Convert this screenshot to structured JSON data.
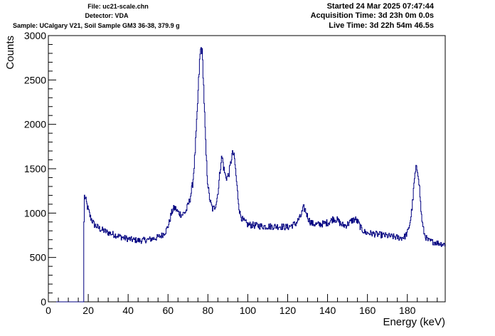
{
  "header": {
    "file": "File: uc21-scale.chn",
    "detector": "Detector: VDA",
    "sample": "Sample: UCalgary V21, Soil Sample GM3 36-38, 379.9 g",
    "started": "Started 24 Mar 2025 07:47:44",
    "acquisition": "Acquisition Time: 3d 23h 0m 0.0s",
    "live": "Live Time: 3d 22h 54m 46.5s"
  },
  "colors": {
    "series": "#000080",
    "axis": "#000000"
  },
  "chart_data": {
    "type": "line",
    "title": "",
    "xlabel": "Energy (keV)",
    "ylabel": "Counts",
    "xlim": [
      0,
      199
    ],
    "ylim": [
      0,
      3000
    ],
    "x_ticks": [
      0,
      20,
      40,
      60,
      80,
      100,
      120,
      140,
      160,
      180
    ],
    "y_ticks": [
      0,
      500,
      1000,
      1500,
      2000,
      2500,
      3000
    ],
    "grid": false,
    "legend": "none",
    "series": [
      {
        "x": [
          0,
          17.8,
          17.9,
          18.5,
          19.5,
          21,
          23,
          26,
          30,
          34,
          38,
          42,
          46,
          50,
          54,
          57,
          59,
          60.5,
          61.5,
          62.5,
          63.5,
          65,
          67,
          69,
          71,
          72.5,
          73.5,
          74.5,
          75.3,
          76,
          76.5,
          77,
          77.6,
          78.3,
          79,
          79.8,
          80.6,
          81.5,
          82.5,
          83.5,
          84.5,
          85.3,
          86,
          86.7,
          87.3,
          88,
          88.8,
          89.6,
          90.4,
          91.2,
          92,
          92.8,
          93.5,
          94.2,
          95,
          96,
          97.5,
          100,
          104,
          108,
          112,
          116,
          120,
          124,
          126.5,
          128,
          129,
          130,
          131,
          132.5,
          135,
          138,
          141,
          143,
          145,
          147,
          149,
          151,
          152.5,
          154,
          155.5,
          157,
          159,
          162,
          165,
          168,
          171,
          174,
          177,
          179,
          180.5,
          181.8,
          182.8,
          183.6,
          184.3,
          185,
          185.6,
          186.2,
          186.9,
          187.7,
          188.6,
          189.5,
          190.5,
          192,
          194,
          196,
          198,
          199
        ],
        "y": [
          0,
          0,
          1200,
          1170,
          1080,
          960,
          870,
          820,
          780,
          750,
          720,
          700,
          690,
          700,
          720,
          750,
          800,
          880,
          980,
          1040,
          1060,
          1010,
          980,
          1020,
          1150,
          1350,
          1650,
          2050,
          2450,
          2750,
          2860,
          2850,
          2600,
          2150,
          1700,
          1380,
          1200,
          1100,
          1040,
          1070,
          1150,
          1280,
          1450,
          1610,
          1620,
          1500,
          1420,
          1400,
          1430,
          1520,
          1650,
          1670,
          1580,
          1400,
          1200,
          1000,
          920,
          870,
          860,
          850,
          850,
          850,
          840,
          880,
          960,
          1060,
          1030,
          960,
          910,
          880,
          870,
          880,
          900,
          940,
          920,
          870,
          860,
          890,
          920,
          930,
          890,
          820,
          780,
          770,
          760,
          750,
          740,
          730,
          720,
          740,
          800,
          950,
          1150,
          1380,
          1490,
          1500,
          1430,
          1260,
          1020,
          860,
          760,
          720,
          690,
          680,
          670,
          660,
          650,
          650
        ]
      }
    ]
  }
}
